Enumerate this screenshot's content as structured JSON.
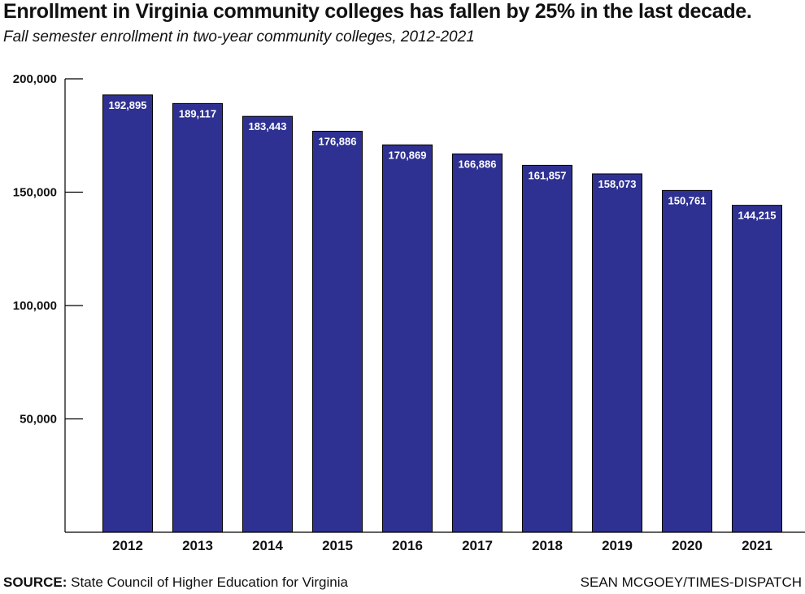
{
  "title": "Enrollment in Virginia community colleges has fallen by 25% in the last decade.",
  "subtitle": "Fall semester enrollment in two-year community colleges, 2012-2021",
  "source_label": "SOURCE:",
  "source_text": "State Council of Higher Education for Virginia",
  "credit": "SEAN MCGOEY/TIMES-DISPATCH",
  "colors": {
    "bar": "#2e3192",
    "bar_label": "#ffffff",
    "axis": "#000000"
  },
  "chart_data": {
    "type": "bar",
    "categories": [
      "2012",
      "2013",
      "2014",
      "2015",
      "2016",
      "2017",
      "2018",
      "2019",
      "2020",
      "2021"
    ],
    "values": [
      192895,
      189117,
      183443,
      176886,
      170869,
      166886,
      161857,
      158073,
      150761,
      144215
    ],
    "value_labels": [
      "192,895",
      "189,117",
      "183,443",
      "176,886",
      "170,869",
      "166,886",
      "161,857",
      "158,073",
      "150,761",
      "144,215"
    ],
    "yticks": [
      50000,
      100000,
      150000,
      200000
    ],
    "ytick_labels": [
      "50,000",
      "100,000",
      "150,000",
      "200,000"
    ],
    "ylim": [
      0,
      200000
    ],
    "grid": false,
    "legend": "none"
  }
}
